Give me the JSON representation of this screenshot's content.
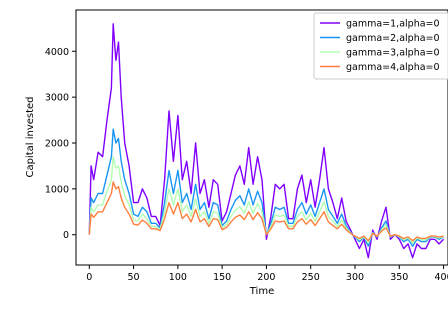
{
  "chart_data": {
    "type": "line",
    "title": "",
    "xlabel": "Time",
    "ylabel": "Capital invested",
    "xlim": [
      -15,
      405
    ],
    "ylim": [
      -660,
      4900
    ],
    "xticks": [
      0,
      50,
      100,
      150,
      200,
      250,
      300,
      350,
      400
    ],
    "yticks": [
      0,
      1000,
      2000,
      3000,
      4000
    ],
    "xtick_labels": [
      "0",
      "50",
      "100",
      "150",
      "200",
      "250",
      "300",
      "350",
      "400"
    ],
    "ytick_labels": [
      "0",
      "1000",
      "2000",
      "3000",
      "4000"
    ],
    "grid": false,
    "legend_position": "top-right",
    "x": [
      0,
      2,
      5,
      10,
      15,
      20,
      25,
      27,
      30,
      33,
      36,
      40,
      45,
      50,
      55,
      60,
      65,
      70,
      75,
      80,
      85,
      90,
      95,
      100,
      105,
      110,
      115,
      120,
      125,
      130,
      135,
      140,
      145,
      150,
      155,
      160,
      165,
      170,
      175,
      180,
      185,
      190,
      195,
      200,
      205,
      210,
      215,
      220,
      225,
      230,
      235,
      240,
      245,
      250,
      255,
      260,
      265,
      270,
      275,
      280,
      285,
      290,
      295,
      300,
      305,
      310,
      315,
      320,
      325,
      330,
      335,
      340,
      345,
      350,
      355,
      360,
      365,
      370,
      375,
      380,
      385,
      390,
      395,
      400
    ],
    "series": [
      {
        "name": "gamma=1,alpha=0",
        "color": "#8000ff",
        "values": [
          0,
          1500,
          1200,
          1800,
          1700,
          2500,
          3200,
          4600,
          3800,
          4200,
          3000,
          2000,
          1500,
          700,
          700,
          1000,
          800,
          400,
          400,
          200,
          1200,
          2700,
          1600,
          2600,
          1200,
          1600,
          900,
          2000,
          900,
          1200,
          600,
          1200,
          1100,
          300,
          500,
          900,
          1300,
          1500,
          1100,
          1900,
          1100,
          1700,
          1200,
          -100,
          400,
          1100,
          1000,
          1100,
          350,
          350,
          1000,
          1300,
          700,
          1200,
          600,
          1200,
          1900,
          1000,
          700,
          350,
          800,
          300,
          100,
          -100,
          -300,
          -100,
          -500,
          100,
          -100,
          300,
          600,
          -100,
          0,
          -100,
          -300,
          -200,
          -500,
          -200,
          -300,
          -300,
          -100,
          -100,
          -200,
          -100
        ]
      },
      {
        "name": "gamma=2,alpha=0",
        "color": "#1996f3",
        "values": [
          0,
          800,
          700,
          900,
          900,
          1300,
          1700,
          2300,
          2000,
          2100,
          1600,
          1200,
          900,
          450,
          400,
          600,
          500,
          250,
          250,
          150,
          700,
          1400,
          900,
          1400,
          700,
          900,
          550,
          1100,
          550,
          700,
          350,
          700,
          650,
          200,
          300,
          550,
          750,
          850,
          650,
          1000,
          650,
          950,
          700,
          0,
          250,
          600,
          550,
          600,
          250,
          250,
          550,
          700,
          450,
          650,
          400,
          700,
          1000,
          550,
          400,
          250,
          450,
          200,
          50,
          -50,
          -150,
          -50,
          -250,
          50,
          -50,
          150,
          300,
          -50,
          0,
          -50,
          -150,
          -100,
          -250,
          -100,
          -150,
          -150,
          -50,
          -50,
          -100,
          -50
        ]
      },
      {
        "name": "gamma=3,alpha=0",
        "color": "#b2ffb2",
        "values": [
          0,
          600,
          500,
          650,
          650,
          950,
          1200,
          1700,
          1450,
          1500,
          1150,
          850,
          650,
          320,
          300,
          450,
          350,
          180,
          180,
          120,
          500,
          1000,
          650,
          1000,
          500,
          650,
          400,
          780,
          400,
          500,
          250,
          500,
          470,
          150,
          220,
          400,
          540,
          610,
          470,
          720,
          470,
          680,
          500,
          0,
          180,
          430,
          400,
          430,
          180,
          180,
          400,
          500,
          320,
          470,
          290,
          500,
          720,
          400,
          290,
          180,
          320,
          150,
          40,
          -40,
          -110,
          -40,
          -180,
          40,
          -40,
          110,
          220,
          -40,
          0,
          -40,
          -110,
          -70,
          -180,
          -70,
          -110,
          -110,
          -40,
          -40,
          -70,
          -40
        ]
      },
      {
        "name": "gamma=4,alpha=0",
        "color": "#ff7f3f",
        "values": [
          0,
          450,
          380,
          500,
          500,
          700,
          900,
          1150,
          1000,
          1050,
          800,
          600,
          450,
          230,
          210,
          320,
          250,
          130,
          130,
          90,
          350,
          700,
          450,
          700,
          350,
          450,
          280,
          550,
          280,
          350,
          180,
          350,
          330,
          110,
          160,
          280,
          380,
          430,
          330,
          500,
          330,
          480,
          350,
          0,
          130,
          300,
          280,
          300,
          130,
          130,
          280,
          350,
          230,
          330,
          200,
          350,
          500,
          280,
          200,
          130,
          230,
          110,
          30,
          -30,
          -80,
          -30,
          -130,
          30,
          -30,
          80,
          150,
          -30,
          0,
          -30,
          -80,
          -50,
          -130,
          -50,
          -80,
          -80,
          -30,
          -30,
          -50,
          -30
        ]
      }
    ]
  }
}
